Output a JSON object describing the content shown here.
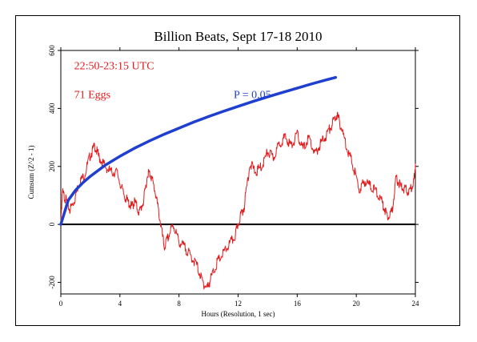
{
  "chart_data": {
    "type": "line",
    "title": "Billion Beats, Sept 17-18 2010",
    "xlabel": "Hours (Resolution, 1 sec)",
    "ylabel": "Cumsum (Z^2 - 1)",
    "xlim": [
      0,
      24
    ],
    "ylim": [
      -240,
      600
    ],
    "x_ticks": [
      0,
      4,
      8,
      12,
      16,
      20,
      24
    ],
    "y_ticks": [
      -200,
      0,
      200,
      400,
      600
    ],
    "annotations": {
      "time_range": "22:50-23:15 UTC",
      "eggs": "71 Eggs",
      "p_label": "P = 0.05"
    },
    "reference_line": {
      "y": 0,
      "color": "#000000"
    },
    "series": [
      {
        "color": "#e31a1c",
        "x": [
          0,
          0.1,
          0.3,
          0.6,
          0.9,
          1.2,
          1.6,
          2.0,
          2.3,
          2.6,
          3.0,
          3.4,
          3.8,
          4.2,
          4.5,
          4.8,
          5.0,
          5.3,
          5.6,
          5.9,
          6.1,
          6.4,
          6.7,
          7.0,
          7.3,
          7.6,
          8.0,
          8.4,
          8.8,
          9.2,
          9.6,
          9.9,
          10.2,
          10.6,
          11.0,
          11.4,
          11.8,
          12.1,
          12.4,
          12.8,
          13.2,
          13.6,
          14.0,
          14.4,
          14.8,
          15.2,
          15.6,
          16.0,
          16.4,
          16.8,
          17.2,
          17.6,
          18.0,
          18.4,
          18.7,
          19.0,
          19.4,
          19.8,
          20.2,
          20.6,
          21.0,
          21.4,
          21.8,
          22.1,
          22.4,
          22.7,
          23.0,
          23.3,
          23.6,
          23.9,
          24.0
        ],
        "values": [
          0,
          110,
          90,
          50,
          80,
          140,
          170,
          240,
          270,
          230,
          200,
          180,
          180,
          110,
          80,
          60,
          80,
          40,
          80,
          180,
          170,
          110,
          20,
          -80,
          -40,
          0,
          -60,
          -80,
          -110,
          -140,
          -200,
          -220,
          -180,
          -130,
          -100,
          -70,
          -40,
          20,
          60,
          210,
          180,
          200,
          250,
          230,
          280,
          300,
          270,
          310,
          260,
          300,
          240,
          280,
          310,
          350,
          380,
          330,
          260,
          200,
          120,
          150,
          130,
          110,
          70,
          30,
          40,
          160,
          130,
          120,
          110,
          150,
          210
        ]
      },
      {
        "color": "#1f3fcf",
        "function": "2*sqrt(n)",
        "x": [
          0,
          0.5,
          1,
          1.5,
          2,
          3,
          4,
          5,
          6,
          7,
          8,
          9,
          10,
          11,
          12,
          13,
          14,
          15,
          16,
          17,
          18,
          18.6
        ],
        "values": [
          0,
          83,
          118,
          144,
          166,
          204,
          235,
          263,
          288,
          311,
          332,
          353,
          372,
          390,
          407,
          424,
          440,
          455,
          470,
          485,
          499,
          507
        ]
      }
    ]
  }
}
